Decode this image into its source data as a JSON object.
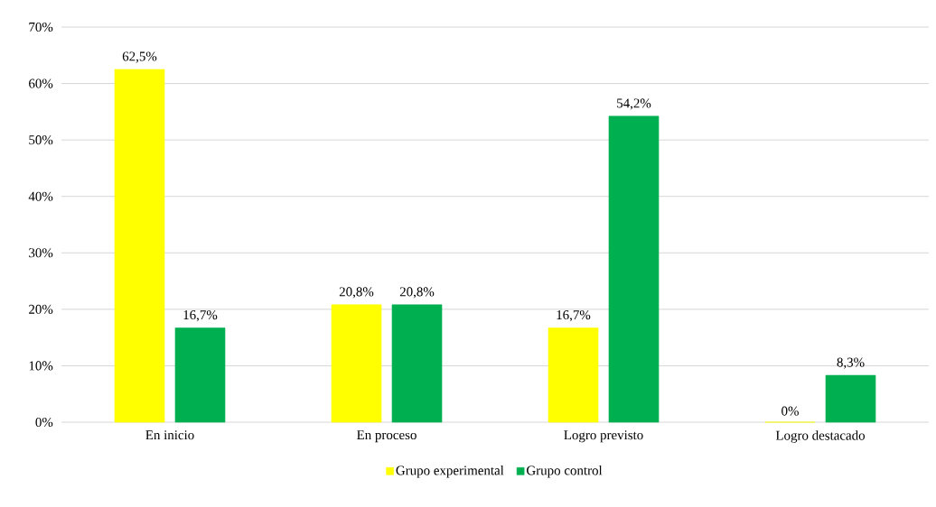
{
  "chart_data": {
    "type": "bar",
    "categories": [
      "En inicio",
      "En proceso",
      "Logro previsto",
      "Logro destacado"
    ],
    "series": [
      {
        "name": "Grupo experimental",
        "color": "#ffff00",
        "values": [
          62.5,
          20.8,
          16.7,
          0
        ],
        "value_labels": [
          "62,5%",
          "20,8%",
          "16,7%",
          "0%"
        ]
      },
      {
        "name": "Grupo control",
        "color": "#00b050",
        "values": [
          16.7,
          20.8,
          54.2,
          8.3
        ],
        "value_labels": [
          "16,7%",
          "20,8%",
          "54,2%",
          "8,3%"
        ]
      }
    ],
    "ylim": [
      0,
      70
    ],
    "yticks": [
      {
        "value": 0,
        "label": "0%"
      },
      {
        "value": 10,
        "label": "10%"
      },
      {
        "value": 20,
        "label": "20%"
      },
      {
        "value": 30,
        "label": "30%"
      },
      {
        "value": 40,
        "label": "40%"
      },
      {
        "value": 50,
        "label": "50%"
      },
      {
        "value": 60,
        "label": "60%"
      },
      {
        "value": 70,
        "label": "70%"
      }
    ],
    "grid": "y",
    "legend": "bottom"
  }
}
